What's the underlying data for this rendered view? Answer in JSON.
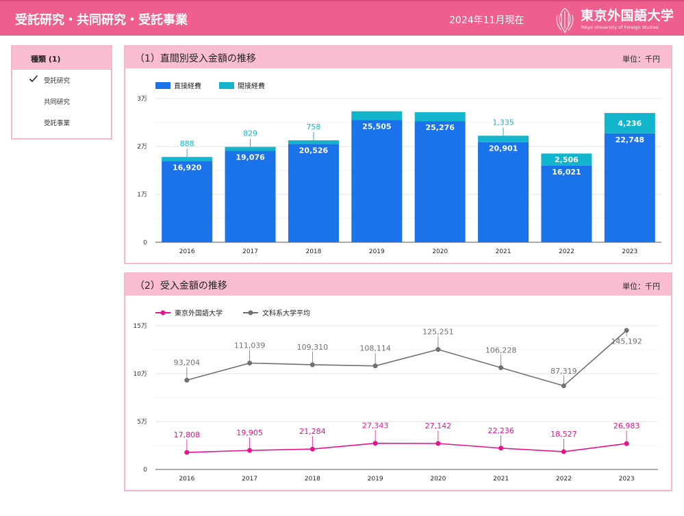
{
  "header": {
    "title": "受託研究・共同研究・受託事業",
    "date": "2024年11月現在",
    "logo_name": "東京外国語大学",
    "logo_sub": "Tokyo University of Foreign Studies"
  },
  "filter": {
    "title": "種類 (1)",
    "items": [
      {
        "label": "受託研究",
        "checked": true
      },
      {
        "label": "共同研究",
        "checked": false
      },
      {
        "label": "受託事業",
        "checked": false
      }
    ]
  },
  "colors": {
    "header": "#ef5f8d",
    "panel_head": "#f8bdd0",
    "direct": "#1a73e8",
    "indirect": "#12b5cb",
    "tufs": "#e8128d",
    "avg": "#707070"
  },
  "panel1": {
    "title": "（1）直間別受入金額の推移",
    "unit": "単位：千円"
  },
  "panel2": {
    "title": "（2）受入金額の推移",
    "unit": "単位：千円"
  },
  "chart_data": [
    {
      "type": "bar",
      "stacked": true,
      "title": "（1）直間別受入金額の推移",
      "categories": [
        "2016",
        "2017",
        "2018",
        "2019",
        "2020",
        "2021",
        "2022",
        "2023"
      ],
      "series": [
        {
          "name": "直接経費",
          "values": [
            16920,
            19076,
            20526,
            25505,
            25276,
            20901,
            16021,
            22748
          ],
          "labels": [
            "16,920",
            "19,076",
            "20,526",
            "25,505",
            "25,276",
            "20,901",
            "16,021",
            "22,748"
          ]
        },
        {
          "name": "間接経費",
          "values": [
            888,
            829,
            758,
            1838,
            1866,
            1335,
            2506,
            4236
          ],
          "labels": [
            "888",
            "829",
            "758",
            "",
            "",
            "1,335",
            "2,506",
            "4,236"
          ]
        }
      ],
      "ylim": [
        0,
        30000
      ],
      "yticks": [
        0,
        10000,
        20000,
        30000
      ],
      "ytick_labels": [
        "0",
        "1万",
        "2万",
        "3万"
      ],
      "legend": "top-left"
    },
    {
      "type": "line",
      "title": "（2）受入金額の推移",
      "categories": [
        "2016",
        "2017",
        "2018",
        "2019",
        "2020",
        "2021",
        "2022",
        "2023"
      ],
      "series": [
        {
          "name": "東京外国語大学",
          "values": [
            17808,
            19905,
            21284,
            27343,
            27142,
            22236,
            18527,
            26983
          ],
          "labels": [
            "17,808",
            "19,905",
            "21,284",
            "27,343",
            "27,142",
            "22,236",
            "18,527",
            "26,983"
          ]
        },
        {
          "name": "文科系大学平均",
          "values": [
            93204,
            111039,
            109310,
            108114,
            125251,
            106228,
            87319,
            145192
          ],
          "labels": [
            "93,204",
            "111,039",
            "109,310",
            "108,114",
            "125,251",
            "106,228",
            "87,319",
            "145,192"
          ]
        }
      ],
      "ylim": [
        0,
        150000
      ],
      "yticks": [
        0,
        50000,
        100000,
        150000
      ],
      "ytick_labels": [
        "0",
        "5万",
        "10万",
        "15万"
      ],
      "legend": "top-left"
    }
  ]
}
